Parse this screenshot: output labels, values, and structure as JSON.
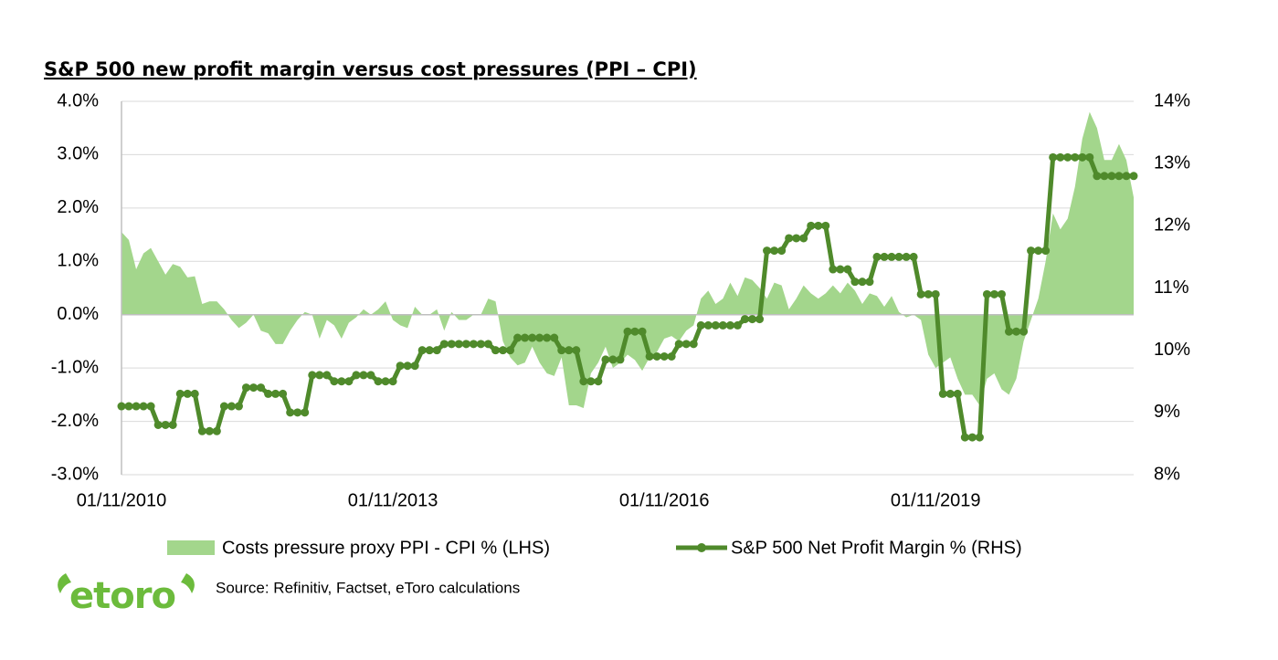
{
  "chart_data": {
    "type": "area-line",
    "title": "S&P 500 new profit margin versus cost pressures (PPI – CPI)",
    "source": "Source: Refinitiv, Factset, eToro calculations",
    "logo": "etoro",
    "categories": [
      "01/11/2010",
      null,
      null,
      null,
      null,
      null,
      null,
      null,
      null,
      null,
      null,
      null,
      null,
      null,
      null,
      null,
      null,
      null,
      null,
      null,
      null,
      null,
      null,
      null,
      null,
      null,
      null,
      null,
      null,
      null,
      null,
      null,
      null,
      null,
      null,
      null,
      null,
      "01/11/2013",
      null,
      null,
      null,
      null,
      null,
      null,
      null,
      null,
      null,
      null,
      null,
      null,
      null,
      null,
      null,
      null,
      null,
      null,
      null,
      null,
      null,
      null,
      null,
      null,
      null,
      null,
      null,
      null,
      null,
      null,
      null,
      null,
      null,
      null,
      null,
      null,
      "01/11/2016",
      null,
      null,
      null,
      null,
      null,
      null,
      null,
      null,
      null,
      null,
      null,
      null,
      null,
      null,
      null,
      null,
      null,
      null,
      null,
      null,
      null,
      null,
      null,
      null,
      null,
      null,
      null,
      null,
      null,
      null,
      null,
      null,
      null,
      null,
      null,
      null,
      "01/11/2019",
      null,
      null,
      null,
      null,
      null,
      null,
      null,
      null,
      null,
      null,
      null,
      null,
      null,
      null,
      null,
      null,
      null,
      null,
      null,
      null,
      null,
      null,
      null,
      null,
      null,
      null,
      null
    ],
    "series": [
      {
        "name": "Costs pressure proxy PPI - CPI % (LHS)",
        "color": "#a3d68c",
        "axis": "y",
        "values": [
          1.55,
          1.4,
          0.85,
          1.15,
          1.25,
          1.0,
          0.75,
          0.95,
          0.9,
          0.7,
          0.72,
          0.2,
          0.25,
          0.25,
          0.1,
          -0.1,
          -0.25,
          -0.15,
          0.0,
          -0.3,
          -0.35,
          -0.55,
          -0.55,
          -0.3,
          -0.1,
          0.05,
          0.0,
          -0.45,
          -0.1,
          -0.2,
          -0.45,
          -0.15,
          -0.05,
          0.1,
          0.0,
          0.1,
          0.25,
          -0.1,
          -0.2,
          -0.25,
          0.15,
          0.0,
          0.0,
          0.1,
          -0.3,
          0.05,
          -0.1,
          -0.1,
          0.0,
          0.0,
          0.3,
          0.25,
          -0.5,
          -0.8,
          -0.95,
          -0.9,
          -0.6,
          -0.9,
          -1.1,
          -1.15,
          -0.8,
          -1.7,
          -1.7,
          -1.75,
          -1.1,
          -0.9,
          -0.6,
          -1.0,
          -0.9,
          -0.75,
          -0.85,
          -1.05,
          -0.8,
          -0.7,
          -0.45,
          -0.4,
          -0.5,
          -0.3,
          -0.2,
          0.3,
          0.45,
          0.2,
          0.3,
          0.6,
          0.35,
          0.7,
          0.65,
          0.5,
          0.3,
          0.6,
          0.55,
          0.1,
          0.3,
          0.55,
          0.4,
          0.3,
          0.4,
          0.55,
          0.4,
          0.6,
          0.45,
          0.2,
          0.4,
          0.35,
          0.15,
          0.35,
          0.05,
          -0.05,
          0.0,
          -0.1,
          -0.75,
          -1.0,
          -0.9,
          -0.8,
          -1.2,
          -1.5,
          -1.5,
          -1.7,
          -1.2,
          -1.1,
          -1.4,
          -1.5,
          -1.2,
          -0.5,
          -0.1,
          0.3,
          1.0,
          1.9,
          1.6,
          1.8,
          2.4,
          3.3,
          3.8,
          3.5,
          2.9,
          2.9,
          3.2,
          2.9,
          2.2
        ]
      },
      {
        "name": "S&P 500 Net Profit Margin % (RHS)",
        "color": "#4f8a2b",
        "axis": "y2",
        "values": [
          9.1,
          9.1,
          9.1,
          9.1,
          9.1,
          8.8,
          8.8,
          8.8,
          9.3,
          9.3,
          9.3,
          8.7,
          8.7,
          8.7,
          9.1,
          9.1,
          9.1,
          9.4,
          9.4,
          9.4,
          9.3,
          9.3,
          9.3,
          9.0,
          9.0,
          9.0,
          9.6,
          9.6,
          9.6,
          9.5,
          9.5,
          9.5,
          9.6,
          9.6,
          9.6,
          9.5,
          9.5,
          9.5,
          9.75,
          9.75,
          9.75,
          10.0,
          10.0,
          10.0,
          10.1,
          10.1,
          10.1,
          10.1,
          10.1,
          10.1,
          10.1,
          10.0,
          10.0,
          10.0,
          10.2,
          10.2,
          10.2,
          10.2,
          10.2,
          10.2,
          10.0,
          10.0,
          10.0,
          9.5,
          9.5,
          9.5,
          9.85,
          9.85,
          9.85,
          10.3,
          10.3,
          10.3,
          9.9,
          9.9,
          9.9,
          9.9,
          10.1,
          10.1,
          10.1,
          10.4,
          10.4,
          10.4,
          10.4,
          10.4,
          10.4,
          10.5,
          10.5,
          10.5,
          11.6,
          11.6,
          11.6,
          11.8,
          11.8,
          11.8,
          12.0,
          12.0,
          12.0,
          11.3,
          11.3,
          11.3,
          11.1,
          11.1,
          11.1,
          11.5,
          11.5,
          11.5,
          11.5,
          11.5,
          11.5,
          10.9,
          10.9,
          10.9,
          9.3,
          9.3,
          9.3,
          8.6,
          8.6,
          8.6,
          10.9,
          10.9,
          10.9,
          10.3,
          10.3,
          10.3,
          11.6,
          11.6,
          11.6,
          13.1,
          13.1,
          13.1,
          13.1,
          13.1,
          13.1,
          12.8,
          12.8,
          12.8,
          12.8,
          12.8,
          12.8
        ]
      }
    ],
    "ylim": [
      -3,
      4
    ],
    "yticks": [
      {
        "value": -3,
        "label": "-3.0%"
      },
      {
        "value": -2,
        "label": "-2.0%"
      },
      {
        "value": -1,
        "label": "-1.0%"
      },
      {
        "value": 0,
        "label": "0.0%"
      },
      {
        "value": 1,
        "label": "1.0%"
      },
      {
        "value": 2,
        "label": "2.0%"
      },
      {
        "value": 3,
        "label": "3.0%"
      },
      {
        "value": 4,
        "label": "4.0%"
      }
    ],
    "y2lim": [
      8,
      14
    ],
    "y2ticks": [
      {
        "value": 8,
        "label": "8%"
      },
      {
        "value": 9,
        "label": "9%"
      },
      {
        "value": 10,
        "label": "10%"
      },
      {
        "value": 11,
        "label": "11%"
      },
      {
        "value": 12,
        "label": "12%"
      },
      {
        "value": 13,
        "label": "13%"
      },
      {
        "value": 14,
        "label": "14%"
      }
    ],
    "grid": true,
    "legend": "bottom"
  }
}
